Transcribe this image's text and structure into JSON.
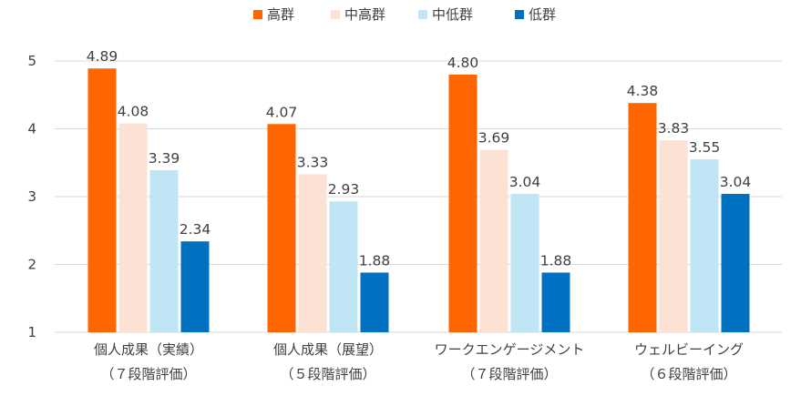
{
  "chart_data": {
    "type": "bar",
    "categories": [
      [
        "個人成果（実績）",
        "（７段階評価）"
      ],
      [
        "個人成果（展望）",
        "（５段階評価）"
      ],
      [
        "ワークエンゲージメント",
        "（７段階評価）"
      ],
      [
        "ウェルビーイング",
        "（６段階評価）"
      ]
    ],
    "series": [
      {
        "name": "高群",
        "color": "#FF6600",
        "values": [
          4.89,
          4.07,
          4.8,
          4.38
        ],
        "labels": [
          "4.89",
          "4.07",
          "4.80",
          "4.38"
        ]
      },
      {
        "name": "中高群",
        "color": "#FBE2D5",
        "values": [
          4.08,
          3.33,
          3.69,
          3.83
        ],
        "labels": [
          "4.08",
          "3.33",
          "3.69",
          "3.83"
        ]
      },
      {
        "name": "中低群",
        "color": "#C0E6F5",
        "values": [
          3.39,
          2.93,
          3.04,
          3.55
        ],
        "labels": [
          "3.39",
          "2.93",
          "3.04",
          "3.55"
        ]
      },
      {
        "name": "低群",
        "color": "#0070C0",
        "values": [
          2.34,
          1.88,
          1.88,
          3.04
        ],
        "labels": [
          "2.34",
          "1.88",
          "1.88",
          "3.04"
        ]
      }
    ],
    "yticks": [
      "1",
      "2",
      "3",
      "4",
      "5"
    ],
    "ylim": [
      1,
      5
    ],
    "grid": true,
    "legend_position": "top-center",
    "title": "",
    "xlabel": "",
    "ylabel": ""
  }
}
